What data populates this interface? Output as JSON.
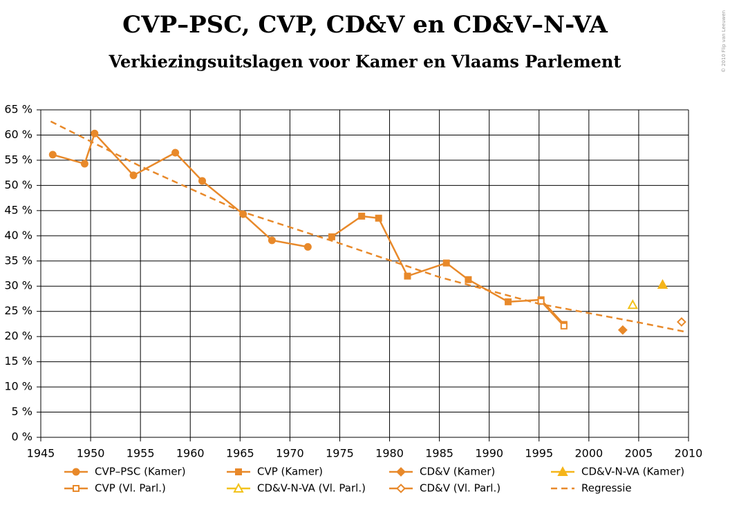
{
  "chart_data": {
    "type": "line",
    "title": "CVP–PSC, CVP, CD&V en CD&V–N-VA",
    "subtitle": "Verkiezingsuitslagen voor Kamer en Vlaams Parlement",
    "copyright": "© 2010 Flip van Leeuwen",
    "xlim": [
      1945,
      2010
    ],
    "xticks": [
      1945,
      1950,
      1955,
      1960,
      1965,
      1970,
      1975,
      1980,
      1985,
      1990,
      1995,
      2000,
      2005,
      2010
    ],
    "ylim": [
      0,
      65
    ],
    "yticks": [
      {
        "value": 0,
        "label": "0 %"
      },
      {
        "value": 5,
        "label": "5 %"
      },
      {
        "value": 10,
        "label": "10 %"
      },
      {
        "value": 15,
        "label": "15 %"
      },
      {
        "value": 20,
        "label": "20 %"
      },
      {
        "value": 25,
        "label": "25 %"
      },
      {
        "value": 30,
        "label": "30 %"
      },
      {
        "value": 35,
        "label": "35 %"
      },
      {
        "value": 40,
        "label": "40 %"
      },
      {
        "value": 45,
        "label": "45 %"
      },
      {
        "value": 50,
        "label": "50 %"
      },
      {
        "value": 55,
        "label": "55 %"
      },
      {
        "value": 60,
        "label": "60 %"
      },
      {
        "value": 65,
        "label": "65 %"
      }
    ],
    "grid": true,
    "series": [
      {
        "name": "CVP–PSC (Kamer)",
        "color": "#e8892a",
        "marker": "circle",
        "filled": true,
        "dashed": false,
        "x": [
          1946.2,
          1949.4,
          1950.4,
          1954.3,
          1958.5,
          1961.2,
          1965.3,
          1968.2,
          1971.8
        ],
        "values": [
          56.1,
          54.3,
          60.3,
          52.0,
          56.5,
          50.9,
          44.3,
          39.1,
          37.8
        ]
      },
      {
        "name": "CVP (Kamer)",
        "color": "#e8892a",
        "marker": "square",
        "filled": true,
        "dashed": false,
        "x": [
          1974.2,
          1977.2,
          1978.9,
          1981.8,
          1985.7,
          1987.9,
          1991.9,
          1995.2,
          1997.5
        ],
        "values": [
          39.8,
          43.9,
          43.5,
          32.0,
          34.6,
          31.3,
          26.9,
          27.3,
          22.4
        ]
      },
      {
        "name": "CD&V (Kamer)",
        "color": "#e8892a",
        "marker": "diamond",
        "filled": true,
        "dashed": false,
        "x": [
          2003.4
        ],
        "values": [
          21.3
        ]
      },
      {
        "name": "CD&V-N-VA (Kamer)",
        "color": "#f5b51a",
        "marker": "triangle",
        "filled": true,
        "dashed": false,
        "x": [
          2007.4
        ],
        "values": [
          30.3
        ]
      },
      {
        "name": "CVP (Vl. Parl.)",
        "color": "#e8892a",
        "marker": "square",
        "filled": false,
        "dashed": false,
        "x": [
          1995.2,
          1997.5
        ],
        "values": [
          27.0,
          22.1
        ]
      },
      {
        "name": "CD&V-N-VA (Vl. Parl.)",
        "color": "#f2c21b",
        "marker": "triangle",
        "filled": false,
        "dashed": false,
        "x": [
          2004.4
        ],
        "values": [
          26.3
        ]
      },
      {
        "name": "CD&V (Vl. Parl.)",
        "color": "#e8892a",
        "marker": "diamond",
        "filled": false,
        "dashed": false,
        "x": [
          2009.3
        ],
        "values": [
          22.9
        ]
      },
      {
        "name": "Regressie",
        "color": "#e8892a",
        "marker": "none",
        "filled": false,
        "dashed": true,
        "x": [
          1946,
          1955,
          1965,
          1975,
          1985,
          1995,
          2005,
          2009.8
        ],
        "values": [
          62.7,
          53.8,
          44.9,
          38.5,
          31.8,
          26.5,
          22.8,
          20.9
        ]
      }
    ]
  }
}
